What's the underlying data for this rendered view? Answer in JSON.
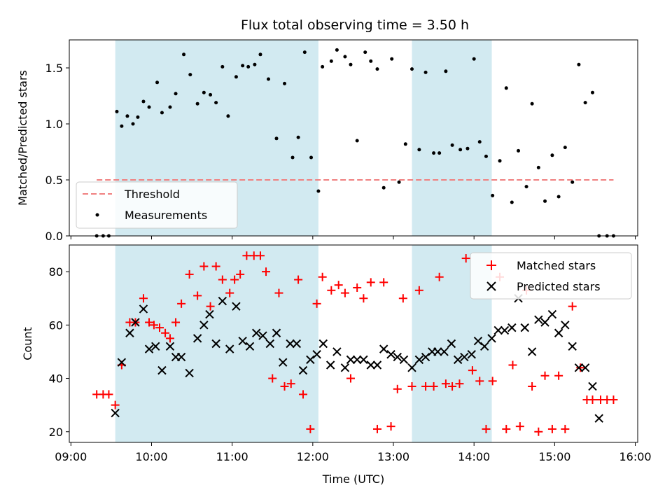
{
  "chart_data": [
    {
      "type": "scatter",
      "title": "Flux total observing time = 3.50 h",
      "xlabel": "",
      "ylabel": "Matched/Predicted stars",
      "xlim": [
        8.98,
        16.03
      ],
      "ylim": [
        0,
        1.75
      ],
      "yticks": [
        0.0,
        0.5,
        1.0,
        1.5
      ],
      "ytick_labels": [
        "0.0",
        "0.5",
        "1.0",
        "1.5"
      ],
      "shaded_spans": [
        [
          9.55,
          12.07
        ],
        [
          13.23,
          14.22
        ]
      ],
      "shade_color": "#add8e6",
      "legend_position": "lower-left",
      "series": [
        {
          "name": "Threshold",
          "kind": "dashed-line",
          "color": "#f08080",
          "x": [
            9.32,
            15.73
          ],
          "y": [
            0.5,
            0.5
          ]
        },
        {
          "name": "Measurements",
          "kind": "points",
          "color": "#000000",
          "x": [
            9.32,
            9.4,
            9.47,
            9.57,
            9.63,
            9.7,
            9.77,
            9.83,
            9.9,
            9.97,
            10.07,
            10.13,
            10.23,
            10.3,
            10.4,
            10.48,
            10.57,
            10.65,
            10.73,
            10.8,
            10.88,
            10.95,
            11.05,
            11.13,
            11.2,
            11.28,
            11.35,
            11.45,
            11.55,
            11.65,
            11.75,
            11.82,
            11.9,
            11.98,
            12.07,
            12.12,
            12.23,
            12.3,
            12.4,
            12.47,
            12.55,
            12.65,
            12.72,
            12.8,
            12.88,
            12.98,
            13.07,
            13.15,
            13.23,
            13.32,
            13.4,
            13.5,
            13.57,
            13.65,
            13.73,
            13.83,
            13.92,
            14.0,
            14.07,
            14.15,
            14.23,
            14.32,
            14.4,
            14.47,
            14.55,
            14.65,
            14.72,
            14.8,
            14.88,
            14.97,
            15.05,
            15.13,
            15.22,
            15.3,
            15.38,
            15.47,
            15.55,
            15.65,
            15.73
          ],
          "y": [
            0.0,
            0.0,
            0.0,
            1.11,
            0.98,
            1.07,
            1.0,
            1.06,
            1.2,
            1.15,
            1.37,
            1.1,
            1.15,
            1.27,
            1.62,
            1.44,
            1.18,
            1.28,
            1.26,
            1.19,
            1.51,
            1.07,
            1.42,
            1.52,
            1.51,
            1.53,
            1.62,
            1.4,
            0.87,
            1.36,
            0.7,
            0.88,
            1.64,
            0.7,
            0.4,
            1.51,
            1.56,
            1.66,
            1.6,
            1.53,
            0.85,
            1.64,
            1.56,
            1.49,
            0.43,
            1.58,
            0.48,
            0.82,
            1.49,
            0.77,
            1.46,
            0.74,
            0.74,
            1.47,
            0.81,
            0.77,
            0.78,
            1.58,
            0.84,
            0.71,
            0.36,
            0.67,
            1.32,
            0.3,
            0.76,
            0.44,
            1.18,
            0.61,
            0.31,
            0.72,
            0.35,
            0.79,
            0.48,
            1.53,
            1.19,
            1.28,
            0.0,
            0.0,
            0.0
          ]
        }
      ]
    },
    {
      "type": "scatter",
      "title": "",
      "xlabel": "Time (UTC)",
      "ylabel": "Count",
      "xlim": [
        8.98,
        16.03
      ],
      "ylim": [
        16,
        90
      ],
      "yticks": [
        20,
        40,
        60,
        80
      ],
      "ytick_labels": [
        "20",
        "40",
        "60",
        "80"
      ],
      "xticks": [
        9,
        10,
        11,
        12,
        13,
        14,
        15,
        16
      ],
      "xtick_labels": [
        "09:00",
        "10:00",
        "11:00",
        "12:00",
        "13:00",
        "14:00",
        "15:00",
        "16:00"
      ],
      "shaded_spans": [
        [
          9.55,
          12.07
        ],
        [
          13.23,
          14.22
        ]
      ],
      "shade_color": "#add8e6",
      "legend_position": "upper-right",
      "series": [
        {
          "name": "Matched stars",
          "kind": "plus",
          "color": "#ff0000",
          "x": [
            9.32,
            9.4,
            9.47,
            9.55,
            9.63,
            9.73,
            9.8,
            9.9,
            9.97,
            10.03,
            10.1,
            10.17,
            10.23,
            10.3,
            10.37,
            10.47,
            10.57,
            10.65,
            10.73,
            10.8,
            10.88,
            10.97,
            11.03,
            11.1,
            11.18,
            11.27,
            11.35,
            11.42,
            11.5,
            11.58,
            11.65,
            11.73,
            11.82,
            11.88,
            11.97,
            12.05,
            12.12,
            12.23,
            12.32,
            12.4,
            12.47,
            12.55,
            12.63,
            12.72,
            12.8,
            12.88,
            12.97,
            13.05,
            13.12,
            13.23,
            13.32,
            13.4,
            13.5,
            13.57,
            13.65,
            13.73,
            13.82,
            13.9,
            13.98,
            14.07,
            14.15,
            14.23,
            14.32,
            14.4,
            14.48,
            14.57,
            14.65,
            14.72,
            14.8,
            14.88,
            14.97,
            15.05,
            15.13,
            15.22,
            15.32,
            15.4,
            15.47,
            15.57,
            15.65,
            15.73
          ],
          "y": [
            34,
            34,
            34,
            30,
            45,
            61,
            61,
            70,
            61,
            60,
            59,
            57,
            55,
            61,
            68,
            79,
            71,
            82,
            67,
            82,
            77,
            72,
            77,
            79,
            86,
            86,
            86,
            80,
            40,
            72,
            37,
            38,
            77,
            34,
            21,
            68,
            78,
            73,
            75,
            72,
            40,
            74,
            70,
            76,
            21,
            76,
            22,
            36,
            70,
            37,
            73,
            37,
            37,
            78,
            38,
            37,
            38,
            85,
            43,
            39,
            21,
            39,
            78,
            21,
            45,
            22,
            73,
            37,
            20,
            41,
            21,
            41,
            21,
            67,
            44,
            32,
            32,
            32,
            32,
            32
          ]
        },
        {
          "name": "Predicted stars",
          "kind": "x",
          "color": "#000000",
          "x": [
            9.55,
            9.63,
            9.73,
            9.8,
            9.9,
            9.97,
            10.05,
            10.13,
            10.23,
            10.3,
            10.37,
            10.47,
            10.57,
            10.65,
            10.72,
            10.8,
            10.88,
            10.97,
            11.05,
            11.13,
            11.22,
            11.3,
            11.38,
            11.47,
            11.55,
            11.63,
            11.72,
            11.8,
            11.88,
            11.97,
            12.05,
            12.13,
            12.22,
            12.3,
            12.4,
            12.47,
            12.55,
            12.63,
            12.72,
            12.8,
            12.88,
            12.97,
            13.05,
            13.13,
            13.23,
            13.32,
            13.4,
            13.48,
            13.55,
            13.63,
            13.72,
            13.8,
            13.88,
            13.97,
            14.05,
            14.13,
            14.22,
            14.3,
            14.38,
            14.47,
            14.55,
            14.63,
            14.72,
            14.8,
            14.88,
            14.97,
            15.05,
            15.13,
            15.22,
            15.3,
            15.38,
            15.47,
            15.55
          ],
          "y": [
            27,
            46,
            57,
            61,
            66,
            51,
            52,
            43,
            52,
            48,
            48,
            42,
            55,
            60,
            64,
            53,
            69,
            51,
            67,
            54,
            52,
            57,
            56,
            53,
            57,
            46,
            53,
            53,
            43,
            47,
            49,
            53,
            45,
            50,
            44,
            47,
            47,
            47,
            45,
            45,
            51,
            49,
            48,
            47,
            44,
            47,
            48,
            50,
            50,
            50,
            53,
            47,
            48,
            49,
            54,
            52,
            55,
            58,
            58,
            59,
            70,
            59,
            50,
            62,
            61,
            64,
            57,
            60,
            52,
            44,
            44,
            37,
            25
          ]
        }
      ]
    }
  ]
}
